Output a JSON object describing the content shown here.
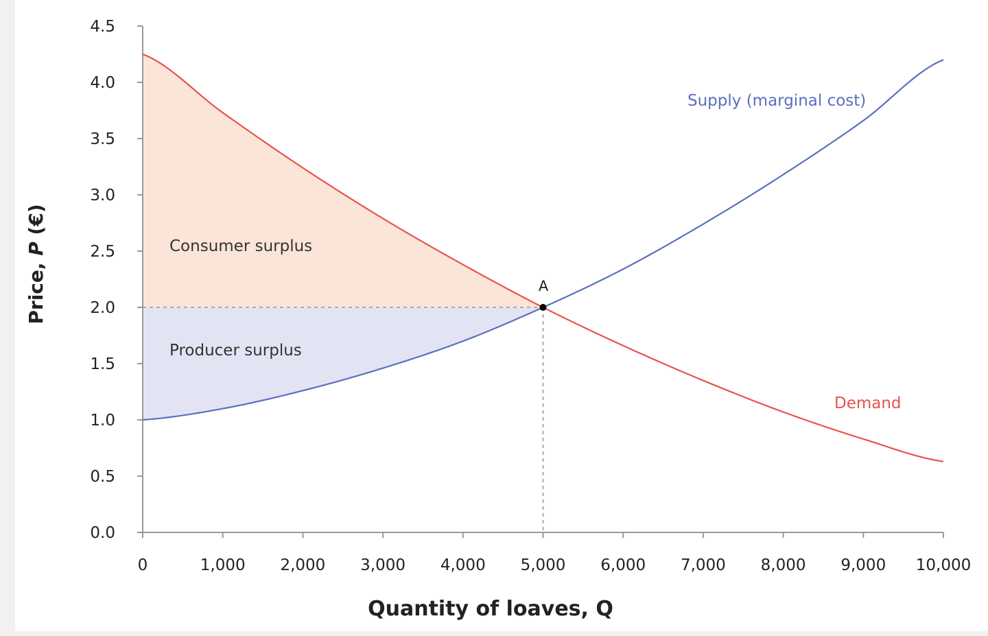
{
  "chart_data": {
    "type": "line",
    "xlabel": "Quantity of loaves, Q",
    "ylabel_prefix": "Price, ",
    "ylabel_var": "P",
    "ylabel_suffix": " (€)",
    "xlim": [
      0,
      10000
    ],
    "ylim": [
      0,
      4.5
    ],
    "x_ticks": [
      0,
      1000,
      2000,
      3000,
      4000,
      5000,
      6000,
      7000,
      8000,
      9000,
      10000
    ],
    "x_tick_labels": [
      "0",
      "1,000",
      "2,000",
      "3,000",
      "4,000",
      "5,000",
      "6,000",
      "7,000",
      "8,000",
      "9,000",
      "10,000"
    ],
    "y_ticks": [
      0,
      0.5,
      1,
      1.5,
      2,
      2.5,
      3,
      3.5,
      4,
      4.5
    ],
    "y_tick_labels": [
      "0.0",
      "0.5",
      "1.0",
      "1.5",
      "2.0",
      "2.5",
      "3.0",
      "3.5",
      "4.0",
      "4.5"
    ],
    "grid": false,
    "x": [
      0,
      1000,
      2000,
      3000,
      4000,
      5000,
      6000,
      7000,
      8000,
      9000,
      10000
    ],
    "series": [
      {
        "name": "Demand",
        "color": "#e8524f",
        "values": [
          4.25,
          3.73,
          3.24,
          2.79,
          2.38,
          2.0,
          1.66,
          1.35,
          1.07,
          0.83,
          0.63
        ]
      },
      {
        "name": "Supply (marginal cost)",
        "color": "#5a6fbf",
        "values": [
          1.0,
          1.1,
          1.26,
          1.46,
          1.7,
          2.0,
          2.34,
          2.74,
          3.18,
          3.66,
          4.2
        ]
      }
    ],
    "equilibrium": {
      "label": "A",
      "q": 5000,
      "p": 2.0
    },
    "areas": [
      {
        "label": "Consumer surplus",
        "color": "#fbe5d8"
      },
      {
        "label": "Producer surplus",
        "color": "#e3e4f3"
      }
    ]
  }
}
